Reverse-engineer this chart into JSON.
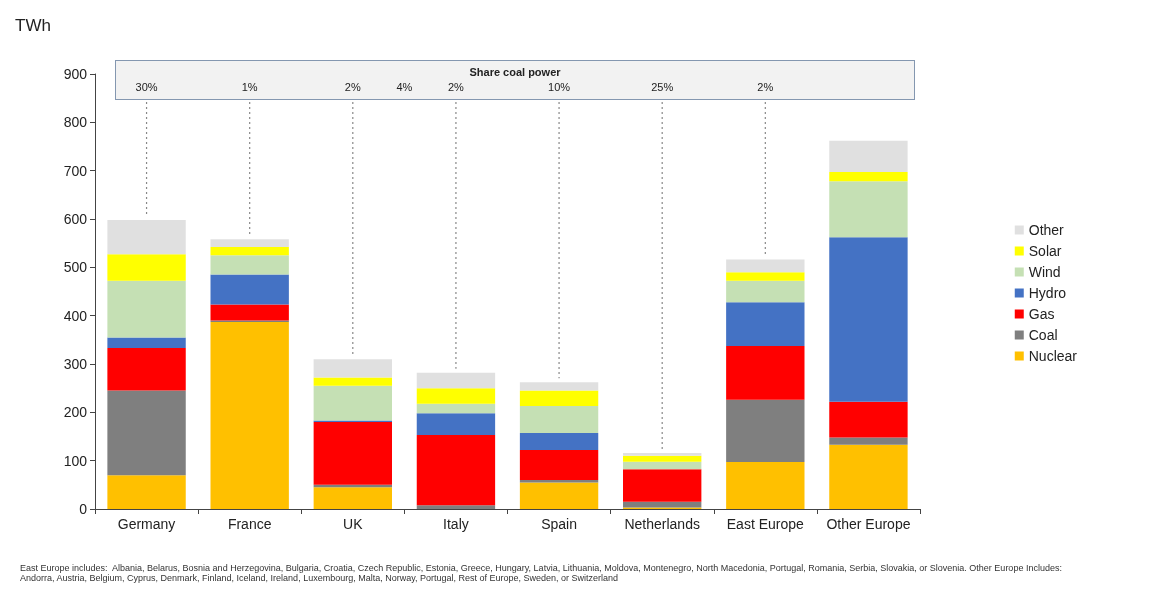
{
  "chart_data": {
    "type": "bar",
    "stacked": true,
    "ylabel": "TWh",
    "categories": [
      "Germany",
      "France",
      "UK",
      "Italy",
      "Spain",
      "Netherlands",
      "East Europe",
      "Other Europe"
    ],
    "series": [
      {
        "name": "Nuclear",
        "color": "#ffc000",
        "values": [
          70,
          387,
          45,
          0,
          55,
          3,
          97,
          133
        ]
      },
      {
        "name": "Coal",
        "color": "#7f7f7f",
        "values": [
          175,
          3,
          5,
          8,
          5,
          12,
          129,
          15
        ]
      },
      {
        "name": "Gas",
        "color": "#ff0000",
        "values": [
          88,
          33,
          130,
          145,
          62,
          67,
          111,
          74
        ]
      },
      {
        "name": "Hydro",
        "color": "#4472c4",
        "values": [
          22,
          62,
          3,
          45,
          35,
          null,
          91,
          340
        ]
      },
      {
        "name": "Wind",
        "color": "#c5e0b4",
        "values": [
          117,
          40,
          72,
          20,
          56,
          16,
          44,
          116
        ]
      },
      {
        "name": "Solar",
        "color": "#ffff00",
        "values": [
          55,
          17,
          17,
          32,
          32,
          12,
          18,
          19
        ]
      },
      {
        "name": "Other",
        "color": "#e0e0e0",
        "values": [
          71,
          16,
          38,
          32,
          17,
          6,
          26,
          65
        ]
      }
    ],
    "ylim": [
      0,
      900
    ],
    "yticks": [
      0,
      100,
      200,
      300,
      400,
      500,
      600,
      700,
      800,
      900
    ],
    "legend": "right",
    "annotations": [
      "Share coal power",
      {
        "text": "30%",
        "x": "Germany"
      },
      {
        "text": "1%",
        "x": "France"
      },
      {
        "text": "2%",
        "x": "UK"
      },
      "4%",
      {
        "text": "2%",
        "x": "Italy"
      },
      {
        "text": "10%",
        "x": "Spain"
      },
      "25%",
      {
        "text": "2%",
        "x": "East Europe"
      },
      "East Europe includes:  Albania, Belarus, Bosnia and Herzegovina, Bulgaria, Croatia, Czech Republic, Estonia, Greece, Hungary, Latvia, Lithuania, Moldova, Montenegro, North Macedonia, Portugal, Romania, Serbia, Slovakia, or Slovenia. Other Europe Includes: Andorra, Austria, Belgium, Cyprus, Denmark, Finland, Iceland, Ireland, Luxembourg, Malta, Norway, Portugal, Rest of Europe, Sweden, or Switzerland"
    ]
  }
}
